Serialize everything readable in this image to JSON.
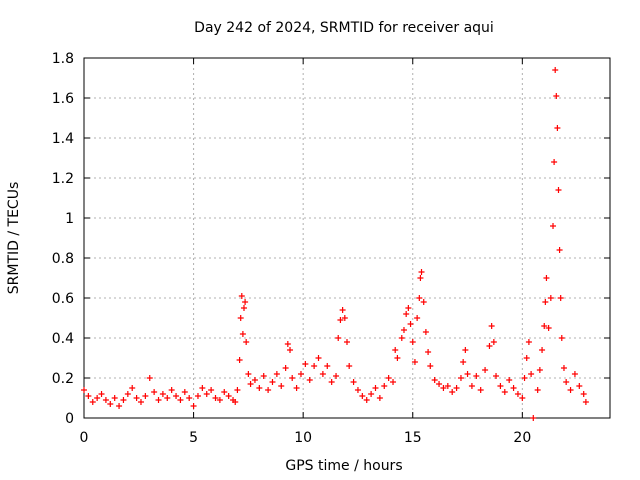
{
  "chart_data": {
    "type": "scatter",
    "title": "Day 242 of 2024, SRMTID for receiver aqui",
    "xlabel": "GPS time / hours",
    "ylabel": "SRMTID / TECUs",
    "xlim": [
      0,
      24
    ],
    "ylim": [
      0,
      1.8
    ],
    "xticks": [
      0,
      5,
      10,
      15,
      20
    ],
    "xtick_labels": [
      "0",
      "5",
      "10",
      "15",
      "20"
    ],
    "yticks": [
      0,
      0.2,
      0.4,
      0.6,
      0.8,
      1.0,
      1.2,
      1.4,
      1.6,
      1.8
    ],
    "ytick_labels": [
      "0",
      "0.2",
      "0.4",
      "0.6",
      "0.8",
      "1",
      "1.2",
      "1.4",
      "1.6",
      "1.8"
    ],
    "grid": true,
    "marker": "+",
    "series": [
      {
        "name": "SRMTID",
        "color": "#ff0000",
        "points": [
          [
            0.0,
            0.14
          ],
          [
            0.2,
            0.11
          ],
          [
            0.4,
            0.08
          ],
          [
            0.6,
            0.1
          ],
          [
            0.8,
            0.12
          ],
          [
            1.0,
            0.09
          ],
          [
            1.2,
            0.07
          ],
          [
            1.4,
            0.1
          ],
          [
            1.6,
            0.06
          ],
          [
            1.8,
            0.09
          ],
          [
            2.0,
            0.12
          ],
          [
            2.2,
            0.15
          ],
          [
            2.4,
            0.1
          ],
          [
            2.6,
            0.08
          ],
          [
            2.8,
            0.11
          ],
          [
            3.0,
            0.2
          ],
          [
            3.2,
            0.13
          ],
          [
            3.4,
            0.09
          ],
          [
            3.6,
            0.12
          ],
          [
            3.8,
            0.1
          ],
          [
            4.0,
            0.14
          ],
          [
            4.2,
            0.11
          ],
          [
            4.4,
            0.09
          ],
          [
            4.6,
            0.13
          ],
          [
            4.8,
            0.1
          ],
          [
            5.0,
            0.06
          ],
          [
            5.2,
            0.11
          ],
          [
            5.4,
            0.15
          ],
          [
            5.6,
            0.12
          ],
          [
            5.8,
            0.14
          ],
          [
            6.0,
            0.1
          ],
          [
            6.2,
            0.09
          ],
          [
            6.4,
            0.13
          ],
          [
            6.6,
            0.11
          ],
          [
            6.8,
            0.09
          ],
          [
            6.9,
            0.08
          ],
          [
            7.0,
            0.14
          ],
          [
            7.1,
            0.29
          ],
          [
            7.15,
            0.5
          ],
          [
            7.2,
            0.61
          ],
          [
            7.25,
            0.42
          ],
          [
            7.3,
            0.55
          ],
          [
            7.35,
            0.58
          ],
          [
            7.4,
            0.38
          ],
          [
            7.5,
            0.22
          ],
          [
            7.6,
            0.17
          ],
          [
            7.8,
            0.19
          ],
          [
            8.0,
            0.15
          ],
          [
            8.2,
            0.21
          ],
          [
            8.4,
            0.14
          ],
          [
            8.6,
            0.18
          ],
          [
            8.8,
            0.22
          ],
          [
            9.0,
            0.16
          ],
          [
            9.2,
            0.25
          ],
          [
            9.3,
            0.37
          ],
          [
            9.4,
            0.34
          ],
          [
            9.5,
            0.2
          ],
          [
            9.7,
            0.15
          ],
          [
            9.9,
            0.22
          ],
          [
            10.1,
            0.27
          ],
          [
            10.3,
            0.19
          ],
          [
            10.5,
            0.26
          ],
          [
            10.7,
            0.3
          ],
          [
            10.9,
            0.22
          ],
          [
            11.1,
            0.26
          ],
          [
            11.3,
            0.18
          ],
          [
            11.5,
            0.21
          ],
          [
            11.6,
            0.4
          ],
          [
            11.7,
            0.49
          ],
          [
            11.8,
            0.54
          ],
          [
            11.9,
            0.5
          ],
          [
            12.0,
            0.38
          ],
          [
            12.1,
            0.26
          ],
          [
            12.3,
            0.18
          ],
          [
            12.5,
            0.14
          ],
          [
            12.7,
            0.11
          ],
          [
            12.9,
            0.09
          ],
          [
            13.1,
            0.12
          ],
          [
            13.3,
            0.15
          ],
          [
            13.5,
            0.1
          ],
          [
            13.7,
            0.16
          ],
          [
            13.9,
            0.2
          ],
          [
            14.1,
            0.18
          ],
          [
            14.2,
            0.34
          ],
          [
            14.3,
            0.3
          ],
          [
            14.5,
            0.4
          ],
          [
            14.6,
            0.44
          ],
          [
            14.7,
            0.52
          ],
          [
            14.8,
            0.55
          ],
          [
            14.9,
            0.47
          ],
          [
            15.0,
            0.38
          ],
          [
            15.1,
            0.28
          ],
          [
            15.2,
            0.5
          ],
          [
            15.3,
            0.6
          ],
          [
            15.35,
            0.7
          ],
          [
            15.4,
            0.73
          ],
          [
            15.5,
            0.58
          ],
          [
            15.6,
            0.43
          ],
          [
            15.7,
            0.33
          ],
          [
            15.8,
            0.26
          ],
          [
            16.0,
            0.19
          ],
          [
            16.2,
            0.17
          ],
          [
            16.4,
            0.15
          ],
          [
            16.6,
            0.16
          ],
          [
            16.8,
            0.13
          ],
          [
            17.0,
            0.15
          ],
          [
            17.2,
            0.2
          ],
          [
            17.3,
            0.28
          ],
          [
            17.4,
            0.34
          ],
          [
            17.5,
            0.22
          ],
          [
            17.7,
            0.16
          ],
          [
            17.9,
            0.21
          ],
          [
            18.1,
            0.14
          ],
          [
            18.3,
            0.24
          ],
          [
            18.5,
            0.36
          ],
          [
            18.6,
            0.46
          ],
          [
            18.7,
            0.38
          ],
          [
            18.8,
            0.21
          ],
          [
            19.0,
            0.16
          ],
          [
            19.2,
            0.13
          ],
          [
            19.4,
            0.19
          ],
          [
            19.6,
            0.15
          ],
          [
            19.8,
            0.12
          ],
          [
            20.0,
            0.1
          ],
          [
            20.1,
            0.2
          ],
          [
            20.2,
            0.3
          ],
          [
            20.3,
            0.38
          ],
          [
            20.4,
            0.22
          ],
          [
            20.5,
            0.0
          ],
          [
            20.7,
            0.14
          ],
          [
            20.8,
            0.24
          ],
          [
            20.9,
            0.34
          ],
          [
            21.0,
            0.46
          ],
          [
            21.05,
            0.58
          ],
          [
            21.1,
            0.7
          ],
          [
            21.2,
            0.45
          ],
          [
            21.3,
            0.6
          ],
          [
            21.4,
            0.96
          ],
          [
            21.45,
            1.28
          ],
          [
            21.5,
            1.74
          ],
          [
            21.55,
            1.61
          ],
          [
            21.6,
            1.45
          ],
          [
            21.65,
            1.14
          ],
          [
            21.7,
            0.84
          ],
          [
            21.75,
            0.6
          ],
          [
            21.8,
            0.4
          ],
          [
            21.9,
            0.25
          ],
          [
            22.0,
            0.18
          ],
          [
            22.2,
            0.14
          ],
          [
            22.4,
            0.22
          ],
          [
            22.6,
            0.16
          ],
          [
            22.8,
            0.12
          ],
          [
            22.9,
            0.08
          ]
        ]
      }
    ]
  }
}
